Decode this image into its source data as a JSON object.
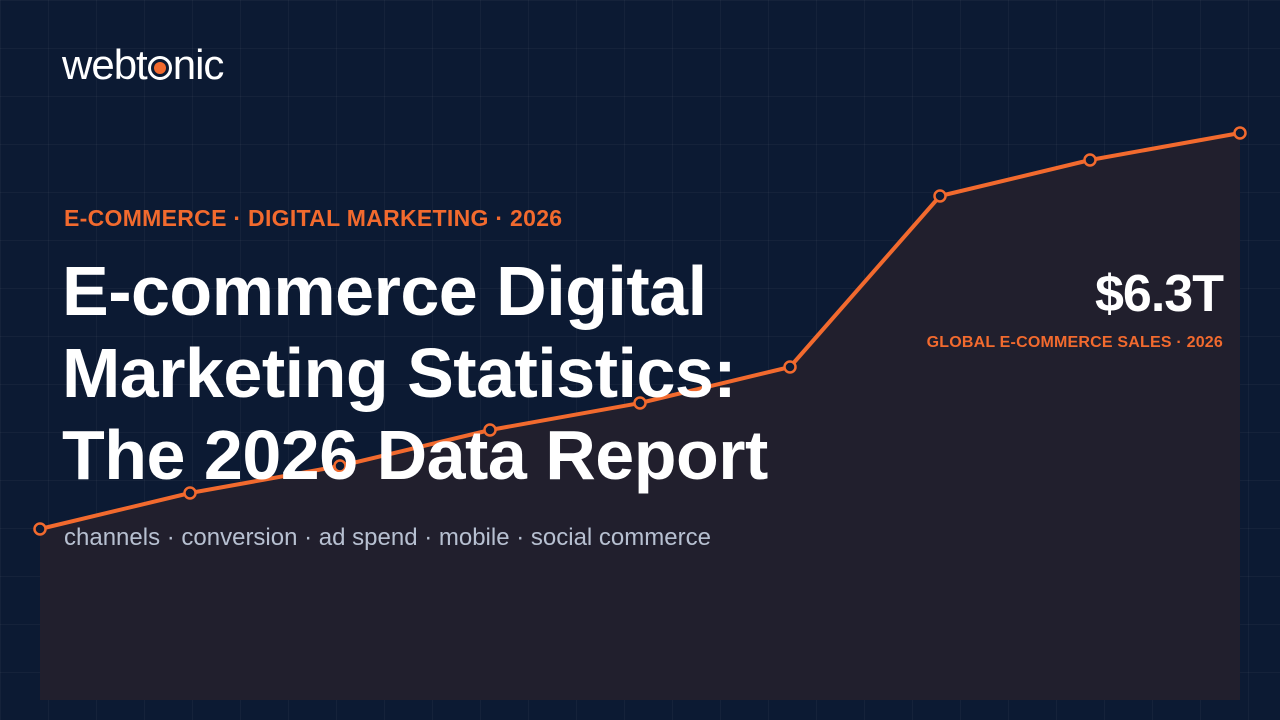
{
  "brand": {
    "logo_left": "webt",
    "logo_right": "nic"
  },
  "eyebrow": "E-COMMERCE · DIGITAL MARKETING · 2026",
  "title_lines": [
    "E-commerce Digital",
    "Marketing Statistics:",
    "The 2026 Data Report"
  ],
  "tags": "channels · conversion · ad spend · mobile · social commerce",
  "highlight": {
    "value": "$6.3T",
    "label": "GLOBAL E-COMMERCE SALES · 2026"
  },
  "colors": {
    "accent": "#f26a2e",
    "background": "#0c1a33",
    "area_fill": "#211f2d"
  },
  "chart_data": {
    "type": "line",
    "x": [
      1,
      2,
      3,
      4,
      5,
      6,
      7,
      8,
      9
    ],
    "series": [
      {
        "values": [
          1.9,
          2.3,
          2.6,
          3.0,
          3.3,
          3.7,
          5.6,
          6.0,
          6.3
        ]
      }
    ],
    "ylim": [
      0,
      7
    ],
    "grid": true,
    "legend": "none"
  }
}
